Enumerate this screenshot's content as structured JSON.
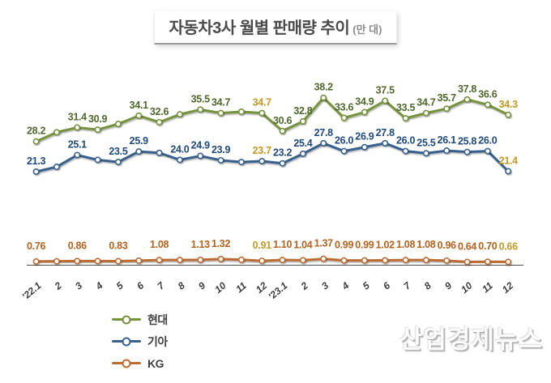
{
  "title": {
    "text": "자동차3사 월별 판매량 추이",
    "unit": "(만 대)"
  },
  "watermark": "산업경제뉴스",
  "legend": [
    {
      "label": "현대",
      "color": "#76923C"
    },
    {
      "label": "기아",
      "color": "#38618F"
    },
    {
      "label": "KG",
      "color": "#BC6C33"
    }
  ],
  "chart_data": {
    "type": "line",
    "title": "자동차3사 월별 판매량 추이 (만 대)",
    "categories": [
      "'22.1",
      "2",
      "3",
      "4",
      "5",
      "6",
      "7",
      "8",
      "9",
      "10",
      "11",
      "12",
      "'23.1",
      "2",
      "3",
      "4",
      "5",
      "6",
      "7",
      "8",
      "9",
      "10",
      "11",
      "12"
    ],
    "series": [
      {
        "name": "현대",
        "color": "#76923C",
        "label_color": "#4E682B",
        "values": [
          28.2,
          30.3,
          31.4,
          30.9,
          32.2,
          34.1,
          32.6,
          34.4,
          35.5,
          34.7,
          35.0,
          34.7,
          30.6,
          32.8,
          38.2,
          33.6,
          34.9,
          37.5,
          33.5,
          34.7,
          35.7,
          37.8,
          36.6,
          34.3
        ],
        "labels": [
          "28.2",
          null,
          "31.4",
          "30.9",
          null,
          "34.1",
          "32.6",
          null,
          "35.5",
          "34.7",
          null,
          "34.7",
          "30.6",
          "32.8",
          "38.2",
          "33.6",
          "34.9",
          "37.5",
          "33.5",
          "34.7",
          "35.7",
          "37.8",
          "36.6",
          "34.3"
        ]
      },
      {
        "name": "기아",
        "color": "#38618F",
        "label_color": "#1F497D",
        "values": [
          21.3,
          22.4,
          25.1,
          24.0,
          23.5,
          25.9,
          25.6,
          24.0,
          24.9,
          23.9,
          23.5,
          23.7,
          23.2,
          25.4,
          27.8,
          26.0,
          26.9,
          27.8,
          26.0,
          25.5,
          26.1,
          25.8,
          26.0,
          21.4
        ],
        "labels": [
          "21.3",
          null,
          "25.1",
          null,
          "23.5",
          "25.9",
          null,
          "24.0",
          "24.9",
          "23.9",
          null,
          "23.7",
          "23.2",
          "25.4",
          "27.8",
          "26.0",
          "26.9",
          "27.8",
          "26.0",
          "25.5",
          "26.1",
          "25.8",
          "26.0",
          "21.4"
        ]
      },
      {
        "name": "KG",
        "color": "#BC6C33",
        "label_color": "#B4621F",
        "values": [
          0.76,
          0.8,
          0.86,
          0.85,
          0.83,
          0.95,
          1.08,
          1.1,
          1.13,
          1.32,
          1.15,
          0.91,
          1.1,
          1.04,
          1.37,
          0.99,
          0.99,
          1.02,
          1.08,
          1.08,
          0.96,
          0.64,
          0.7,
          0.66
        ],
        "labels": [
          "0.76",
          null,
          "0.86",
          null,
          "0.83",
          null,
          "1.08",
          null,
          "1.13",
          "1.32",
          null,
          "0.91",
          "1.10",
          "1.04",
          "1.37",
          "0.99",
          "0.99",
          "1.02",
          "1.08",
          "1.08",
          "0.96",
          "0.64",
          "0.70",
          "0.66"
        ]
      }
    ],
    "highlight_indices": [
      11,
      23
    ],
    "highlight_color": "#C49A26",
    "ylim": [
      0,
      40
    ],
    "grid": false,
    "y_axis_shown": false,
    "legend_position": "bottom-left",
    "axis_color": "#4d4d4d",
    "tick_label_color": "#3d3d3d"
  }
}
